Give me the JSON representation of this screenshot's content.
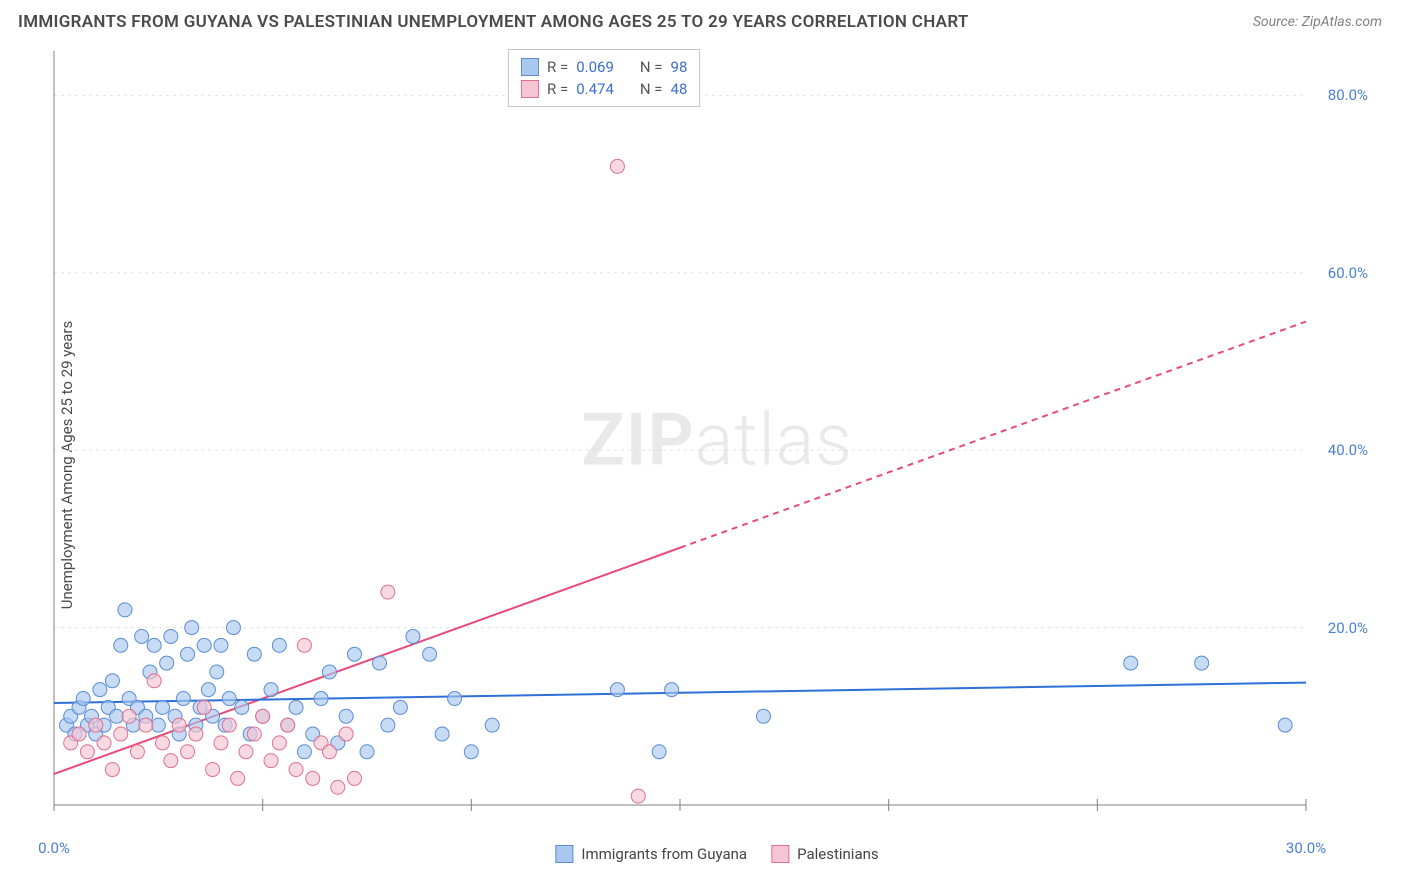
{
  "title": "IMMIGRANTS FROM GUYANA VS PALESTINIAN UNEMPLOYMENT AMONG AGES 25 TO 29 YEARS CORRELATION CHART",
  "source": "Source: ZipAtlas.com",
  "y_axis_label": "Unemployment Among Ages 25 to 29 years",
  "watermark": {
    "zip": "ZIP",
    "atlas": "atlas"
  },
  "chart": {
    "type": "scatter",
    "xlim": [
      0,
      30
    ],
    "ylim": [
      0,
      85
    ],
    "x_ticks": [
      0,
      5,
      10,
      15,
      20,
      25,
      30
    ],
    "x_tick_labels": [
      "0.0%",
      "",
      "",
      "",
      "",
      "",
      "30.0%"
    ],
    "y_ticks": [
      20,
      40,
      60,
      80
    ],
    "y_tick_labels": [
      "20.0%",
      "40.0%",
      "60.0%",
      "80.0%"
    ],
    "grid_color": "#e2e2e2",
    "axis_color": "#808080",
    "background_color": "#ffffff",
    "marker_radius": 7,
    "series": [
      {
        "name": "Immigrants from Guyana",
        "color_fill": "#a9c7ef",
        "color_stroke": "#5a8dd6",
        "r": "0.069",
        "n": "98",
        "trend_line": {
          "y1": 11.5,
          "y2": 13.8,
          "x1": 0,
          "x2": 30,
          "color": "#2e6fd8",
          "width": 2
        },
        "points": [
          [
            0.3,
            9
          ],
          [
            0.4,
            10
          ],
          [
            0.5,
            8
          ],
          [
            0.6,
            11
          ],
          [
            0.7,
            12
          ],
          [
            0.8,
            9
          ],
          [
            0.9,
            10
          ],
          [
            1.0,
            8
          ],
          [
            1.1,
            13
          ],
          [
            1.2,
            9
          ],
          [
            1.3,
            11
          ],
          [
            1.4,
            14
          ],
          [
            1.5,
            10
          ],
          [
            1.6,
            18
          ],
          [
            1.7,
            22
          ],
          [
            1.8,
            12
          ],
          [
            1.9,
            9
          ],
          [
            2.0,
            11
          ],
          [
            2.1,
            19
          ],
          [
            2.2,
            10
          ],
          [
            2.3,
            15
          ],
          [
            2.4,
            18
          ],
          [
            2.5,
            9
          ],
          [
            2.6,
            11
          ],
          [
            2.7,
            16
          ],
          [
            2.8,
            19
          ],
          [
            2.9,
            10
          ],
          [
            3.0,
            8
          ],
          [
            3.1,
            12
          ],
          [
            3.2,
            17
          ],
          [
            3.3,
            20
          ],
          [
            3.4,
            9
          ],
          [
            3.5,
            11
          ],
          [
            3.6,
            18
          ],
          [
            3.7,
            13
          ],
          [
            3.8,
            10
          ],
          [
            3.9,
            15
          ],
          [
            4.0,
            18
          ],
          [
            4.1,
            9
          ],
          [
            4.2,
            12
          ],
          [
            4.3,
            20
          ],
          [
            4.5,
            11
          ],
          [
            4.7,
            8
          ],
          [
            4.8,
            17
          ],
          [
            5.0,
            10
          ],
          [
            5.2,
            13
          ],
          [
            5.4,
            18
          ],
          [
            5.6,
            9
          ],
          [
            5.8,
            11
          ],
          [
            6.0,
            6
          ],
          [
            6.2,
            8
          ],
          [
            6.4,
            12
          ],
          [
            6.6,
            15
          ],
          [
            6.8,
            7
          ],
          [
            7.0,
            10
          ],
          [
            7.2,
            17
          ],
          [
            7.5,
            6
          ],
          [
            7.8,
            16
          ],
          [
            8.0,
            9
          ],
          [
            8.3,
            11
          ],
          [
            8.6,
            19
          ],
          [
            9.0,
            17
          ],
          [
            9.3,
            8
          ],
          [
            9.6,
            12
          ],
          [
            10.0,
            6
          ],
          [
            10.5,
            9
          ],
          [
            13.5,
            13
          ],
          [
            14.5,
            6
          ],
          [
            14.8,
            13
          ],
          [
            17.0,
            10
          ],
          [
            25.8,
            16
          ],
          [
            27.5,
            16
          ],
          [
            29.5,
            9
          ]
        ]
      },
      {
        "name": "Palestinians",
        "color_fill": "#f5c5d3",
        "color_stroke": "#e07090",
        "r": "0.474",
        "n": "48",
        "trend_line_solid": {
          "y1": 3.5,
          "y2": 29,
          "x1": 0,
          "x2": 15,
          "color": "#e94b78",
          "width": 2
        },
        "trend_line_dashed": {
          "y1": 29,
          "y2": 54.5,
          "x1": 15,
          "x2": 30,
          "color": "#e94b78",
          "width": 2,
          "dash": "6,5"
        },
        "points": [
          [
            0.4,
            7
          ],
          [
            0.6,
            8
          ],
          [
            0.8,
            6
          ],
          [
            1.0,
            9
          ],
          [
            1.2,
            7
          ],
          [
            1.4,
            4
          ],
          [
            1.6,
            8
          ],
          [
            1.8,
            10
          ],
          [
            2.0,
            6
          ],
          [
            2.2,
            9
          ],
          [
            2.4,
            14
          ],
          [
            2.6,
            7
          ],
          [
            2.8,
            5
          ],
          [
            3.0,
            9
          ],
          [
            3.2,
            6
          ],
          [
            3.4,
            8
          ],
          [
            3.6,
            11
          ],
          [
            3.8,
            4
          ],
          [
            4.0,
            7
          ],
          [
            4.2,
            9
          ],
          [
            4.4,
            3
          ],
          [
            4.6,
            6
          ],
          [
            4.8,
            8
          ],
          [
            5.0,
            10
          ],
          [
            5.2,
            5
          ],
          [
            5.4,
            7
          ],
          [
            5.6,
            9
          ],
          [
            5.8,
            4
          ],
          [
            6.0,
            18
          ],
          [
            6.2,
            3
          ],
          [
            6.4,
            7
          ],
          [
            6.6,
            6
          ],
          [
            6.8,
            2
          ],
          [
            7.0,
            8
          ],
          [
            7.2,
            3
          ],
          [
            8.0,
            24
          ],
          [
            13.5,
            72
          ],
          [
            14.0,
            1
          ]
        ]
      }
    ],
    "stats_legend": {
      "r_label": "R =",
      "n_label": "N ="
    },
    "bottom_legend": {
      "series_a": "Immigrants from Guyana",
      "series_b": "Palestinians"
    }
  }
}
